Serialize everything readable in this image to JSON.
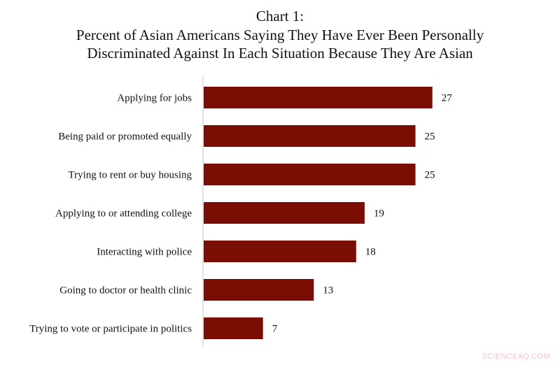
{
  "chart_data": {
    "type": "bar",
    "orientation": "horizontal",
    "title_lines": [
      "Chart 1:",
      "Percent of Asian Americans Saying They Have Ever Been Personally",
      "Discriminated Against In Each Situation Because They Are Asian"
    ],
    "categories": [
      "Applying for jobs",
      "Being paid or promoted equally",
      "Trying to rent or buy housing",
      "Applying to or attending college",
      "Interacting with police",
      "Going to doctor or health clinic",
      "Trying to vote or participate  in politics"
    ],
    "values": [
      27,
      25,
      25,
      19,
      18,
      13,
      7
    ],
    "xlabel": "",
    "ylabel": "",
    "xlim": [
      0,
      40
    ],
    "grid": false,
    "data_labels": true,
    "bar_color": "#7a0e05",
    "axis_color": "#d8d8d8"
  },
  "watermark": "SCIENCEAQ.COM"
}
